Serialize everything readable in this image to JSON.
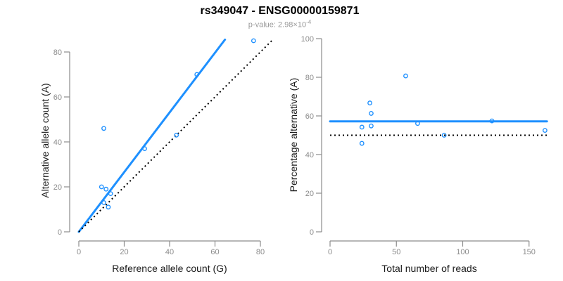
{
  "header": {
    "title": "rs349047 - ENSG00000159871",
    "subtitle_prefix": "p-value: 2.98×10",
    "subtitle_exponent": "-4"
  },
  "colors": {
    "accent_blue": "#1E90FF",
    "dotted_black": "#000000",
    "axis_gray": "#8C8C8C",
    "tick_label_gray": "#8C8C8C"
  },
  "chart_data": [
    {
      "type": "scatter",
      "xlabel": "Reference allele count (G)",
      "ylabel": "Alternative allele count (A)",
      "x_ticks": [
        0,
        20,
        40,
        60,
        80
      ],
      "y_ticks": [
        0,
        20,
        40,
        60,
        80
      ],
      "xlim": [
        -4,
        86
      ],
      "ylim": [
        -4,
        86
      ],
      "grid": false,
      "points": [
        [
          10,
          20
        ],
        [
          12,
          19
        ],
        [
          14,
          17
        ],
        [
          11,
          13
        ],
        [
          13,
          11
        ],
        [
          29,
          37
        ],
        [
          43,
          43
        ],
        [
          52,
          70
        ],
        [
          11,
          46
        ],
        [
          77,
          85
        ]
      ],
      "lines": [
        {
          "name": "fit-line",
          "style": "solid",
          "color_key": "accent_blue",
          "x1": 0,
          "y1": 0,
          "x2": 64.4,
          "y2": 85.5
        },
        {
          "name": "identity-line",
          "style": "dotted",
          "color_key": "dotted_black",
          "x1": 0,
          "y1": 0,
          "x2": 85.3,
          "y2": 85.3
        }
      ]
    },
    {
      "type": "scatter",
      "xlabel": "Total number of reads",
      "ylabel": "Percentage alternative (A)",
      "x_ticks": [
        0,
        50,
        100,
        150
      ],
      "y_ticks": [
        0,
        20,
        40,
        60,
        80,
        100
      ],
      "xlim": [
        -7,
        170
      ],
      "ylim": [
        0,
        100
      ],
      "grid": false,
      "points": [
        [
          30,
          66.7
        ],
        [
          31,
          61.3
        ],
        [
          31,
          54.8
        ],
        [
          24,
          54.2
        ],
        [
          24,
          45.8
        ],
        [
          66,
          56.1
        ],
        [
          86,
          50.0
        ],
        [
          122,
          57.4
        ],
        [
          57,
          80.7
        ],
        [
          162,
          52.5
        ]
      ],
      "lines": [
        {
          "name": "mean-line",
          "style": "solid",
          "color_key": "accent_blue",
          "x1": 0,
          "y1": 57.2,
          "x2": 163.5,
          "y2": 57.2
        },
        {
          "name": "reference-line",
          "style": "dotted",
          "color_key": "dotted_black",
          "x1": 0,
          "y1": 50,
          "x2": 163.5,
          "y2": 50
        }
      ]
    }
  ]
}
